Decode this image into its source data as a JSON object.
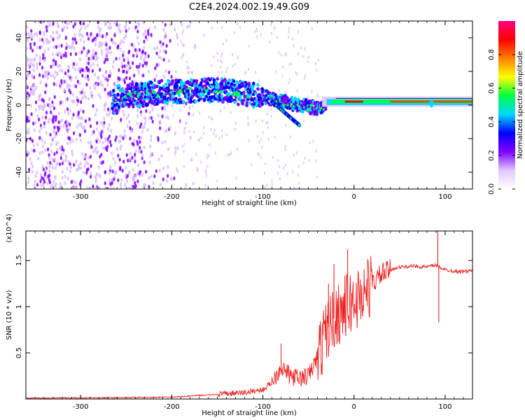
{
  "title": "C2E4.2024.002.19.49.G09",
  "chart_data": [
    {
      "type": "heatmap",
      "title": "C2E4.2024.002.19.49.G09",
      "xlabel": "Height of straight line (km)",
      "ylabel": "Frequency (Hz)",
      "xlim": [
        -360,
        130
      ],
      "ylim": [
        -50,
        50
      ],
      "x_ticks": [
        -300,
        -200,
        -100,
        0,
        100
      ],
      "y_ticks": [
        -40,
        -20,
        0,
        20,
        40
      ],
      "colorbar": {
        "label": "Normalized spectral amplitude",
        "range": [
          0,
          1
        ],
        "ticks": [
          0.0,
          0.2,
          0.4,
          0.6,
          0.8
        ],
        "colors": [
          "#ffffff",
          "#e0c8ff",
          "#8000ff",
          "#0000ff",
          "#00d8ff",
          "#00ff40",
          "#ffff00",
          "#ff8000",
          "#ff0000",
          "#ff0080"
        ]
      },
      "features": {
        "noise_region_x": [
          -360,
          -200
        ],
        "signal_band": [
          {
            "x": -260,
            "y": 5
          },
          {
            "x": -200,
            "y": 8
          },
          {
            "x": -150,
            "y": 9
          },
          {
            "x": -100,
            "y": 5
          },
          {
            "x": -60,
            "y": 0
          },
          {
            "x": -40,
            "y": -2
          },
          {
            "x": -20,
            "y": 1
          },
          {
            "x": 0,
            "y": 2
          },
          {
            "x": 50,
            "y": 2
          },
          {
            "x": 100,
            "y": 2
          },
          {
            "x": 130,
            "y": 2
          }
        ],
        "descending_branch": [
          {
            "x": -90,
            "y": 2
          },
          {
            "x": -75,
            "y": -5
          },
          {
            "x": -60,
            "y": -12
          }
        ]
      }
    },
    {
      "type": "line",
      "xlabel": "Height of straight line (km)",
      "ylabel": "SNR (10 * v/v)",
      "y_multiplier": "(x10^4)",
      "xlim": [
        -360,
        130
      ],
      "ylim": [
        0.0,
        1.82
      ],
      "x_ticks": [
        -300,
        -200,
        -100,
        0,
        100
      ],
      "y_ticks": [
        0.5,
        1.0,
        1.5
      ],
      "color": "#ee2222",
      "points": [
        {
          "x": -360,
          "y": 0.01
        },
        {
          "x": -250,
          "y": 0.015
        },
        {
          "x": -200,
          "y": 0.02
        },
        {
          "x": -150,
          "y": 0.05
        },
        {
          "x": -120,
          "y": 0.07
        },
        {
          "x": -100,
          "y": 0.1
        },
        {
          "x": -90,
          "y": 0.18
        },
        {
          "x": -80,
          "y": 0.35
        },
        {
          "x": -70,
          "y": 0.25
        },
        {
          "x": -60,
          "y": 0.22
        },
        {
          "x": -50,
          "y": 0.25
        },
        {
          "x": -40,
          "y": 0.45
        },
        {
          "x": -30,
          "y": 0.75
        },
        {
          "x": -20,
          "y": 0.9
        },
        {
          "x": -10,
          "y": 1.0
        },
        {
          "x": 0,
          "y": 1.05
        },
        {
          "x": 10,
          "y": 1.15
        },
        {
          "x": 20,
          "y": 1.25
        },
        {
          "x": 30,
          "y": 1.35
        },
        {
          "x": 45,
          "y": 1.42
        },
        {
          "x": 60,
          "y": 1.44
        },
        {
          "x": 80,
          "y": 1.43
        },
        {
          "x": 90,
          "y": 1.45
        },
        {
          "x": 100,
          "y": 1.4
        },
        {
          "x": 115,
          "y": 1.38
        },
        {
          "x": 130,
          "y": 1.39
        }
      ],
      "spikes": [
        {
          "x": -80,
          "y": 0.6
        },
        {
          "x": -28,
          "y": 1.25
        },
        {
          "x": -22,
          "y": 1.46
        },
        {
          "x": -7,
          "y": 1.62
        },
        {
          "x": 92,
          "y": 1.82
        },
        {
          "x": 93,
          "y": 0.83
        }
      ]
    }
  ]
}
